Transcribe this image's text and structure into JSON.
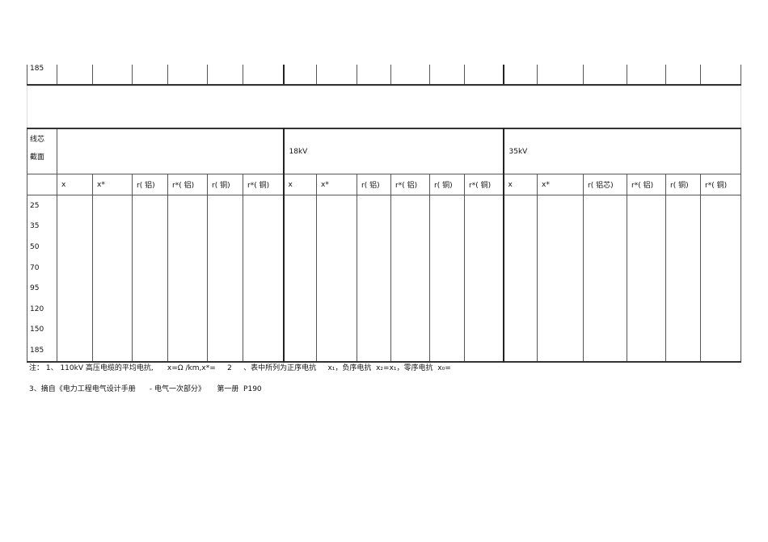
{
  "top_row_label": "185",
  "table": {
    "corner_label_line1": "线芯",
    "corner_label_line2": "截面",
    "group_headers": [
      "",
      "18kV",
      "35kV"
    ],
    "sub_headers": [
      [
        "x",
        "x*",
        "r( 铝)",
        "r*( 铝)",
        "r( 铜)",
        "r*( 铜)"
      ],
      [
        "x",
        "x*",
        "r( 铝)",
        "r*( 铝)",
        "r( 铜)",
        "r*( 铜)"
      ],
      [
        "x",
        "x*",
        "r( 铝芯)",
        "r*( 铝)",
        "r( 铜)",
        "r*( 铜)"
      ]
    ],
    "rows": [
      "25",
      "35",
      "50",
      "70",
      "95",
      "120",
      "150",
      "185"
    ]
  },
  "notes": {
    "line1_a": "注： 1、 110kV 高压电缆的平均电抗,",
    "line1_b": "x=Ω /km,x*=",
    "line1_c": "2",
    "line1_d": "、表中所列为正序电抗",
    "line1_e": "x₁，负序电抗",
    "line1_f": "x₂=x₁，零序电抗",
    "line1_g": "x₀=",
    "line2_a": "3、摘自《电力工程电气设计手册",
    "line2_b": "- 电气一次部分》",
    "line2_c": "第一册  P190"
  }
}
